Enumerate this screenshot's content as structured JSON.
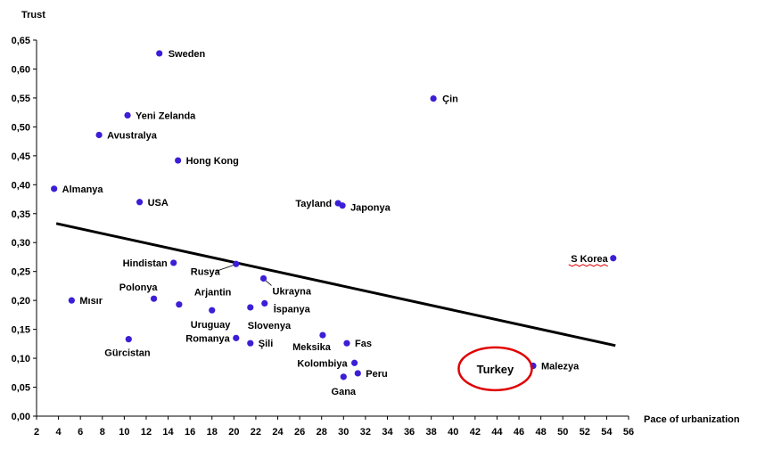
{
  "chart_data": {
    "type": "scatter",
    "title": "",
    "xlabel": "Pace of urbanization",
    "ylabel": "Trust",
    "xlim": [
      2,
      56
    ],
    "ylim": [
      0,
      0.65
    ],
    "x_ticks": [
      "2",
      "4",
      "6",
      "8",
      "10",
      "12",
      "14",
      "16",
      "18",
      "20",
      "22",
      "24",
      "26",
      "28",
      "30",
      "32",
      "34",
      "36",
      "38",
      "40",
      "42",
      "44",
      "46",
      "48",
      "50",
      "52",
      "54",
      "56"
    ],
    "y_ticks": [
      "0,00",
      "0,05",
      "0,10",
      "0,15",
      "0,20",
      "0,25",
      "0,30",
      "0,35",
      "0,40",
      "0,45",
      "0,50",
      "0,55",
      "0,60",
      "0,65"
    ],
    "points": [
      {
        "label": "Sweden",
        "x": 13.2,
        "y": 0.627
      },
      {
        "label": "Çin",
        "x": 38.2,
        "y": 0.549
      },
      {
        "label": "Yeni Zelanda",
        "x": 10.3,
        "y": 0.52
      },
      {
        "label": "Avustralya",
        "x": 7.7,
        "y": 0.486
      },
      {
        "label": "Hong Kong",
        "x": 14.9,
        "y": 0.442
      },
      {
        "label": "Almanya",
        "x": 3.6,
        "y": 0.393
      },
      {
        "label": "USA",
        "x": 11.4,
        "y": 0.37
      },
      {
        "label": "Tayland",
        "x": 29.5,
        "y": 0.368
      },
      {
        "label": "Japonya",
        "x": 29.9,
        "y": 0.364
      },
      {
        "label": "S Korea",
        "x": 54.6,
        "y": 0.273
      },
      {
        "label": "Hindistan",
        "x": 14.5,
        "y": 0.265
      },
      {
        "label": "Rusya",
        "x": 20.2,
        "y": 0.263
      },
      {
        "label": "Ukrayna",
        "x": 22.7,
        "y": 0.238
      },
      {
        "label": "Mısır",
        "x": 5.2,
        "y": 0.2
      },
      {
        "label": "Polonya",
        "x": 12.7,
        "y": 0.203
      },
      {
        "label": "Arjantin",
        "x": 15.0,
        "y": 0.193
      },
      {
        "label": "İspanya",
        "x": 22.8,
        "y": 0.195
      },
      {
        "label": "Slovenya",
        "x": 21.5,
        "y": 0.188
      },
      {
        "label": "Uruguay",
        "x": 18.0,
        "y": 0.183
      },
      {
        "label": "Romanya",
        "x": 20.2,
        "y": 0.135
      },
      {
        "label": "Meksika",
        "x": 28.1,
        "y": 0.14
      },
      {
        "label": "Gürcistan",
        "x": 10.4,
        "y": 0.133
      },
      {
        "label": "Şili",
        "x": 21.5,
        "y": 0.126
      },
      {
        "label": "Fas",
        "x": 30.3,
        "y": 0.126
      },
      {
        "label": "Kolombiya",
        "x": 31.0,
        "y": 0.092
      },
      {
        "label": "Malezya",
        "x": 47.3,
        "y": 0.087
      },
      {
        "label": "Peru",
        "x": 31.3,
        "y": 0.074
      },
      {
        "label": "Gana",
        "x": 30.0,
        "y": 0.068
      }
    ],
    "trendline": {
      "x": [
        3.8,
        54.8
      ],
      "y": [
        0.333,
        0.122
      ]
    },
    "annotation": {
      "text": "Turkey",
      "x": 44.0,
      "y": 0.085
    },
    "colors": {
      "points": "#3a1fd6",
      "trendline": "#000000",
      "annotation_circle": "#e00000",
      "label_underline": "#e00000"
    },
    "grid": false,
    "legend": "none"
  }
}
